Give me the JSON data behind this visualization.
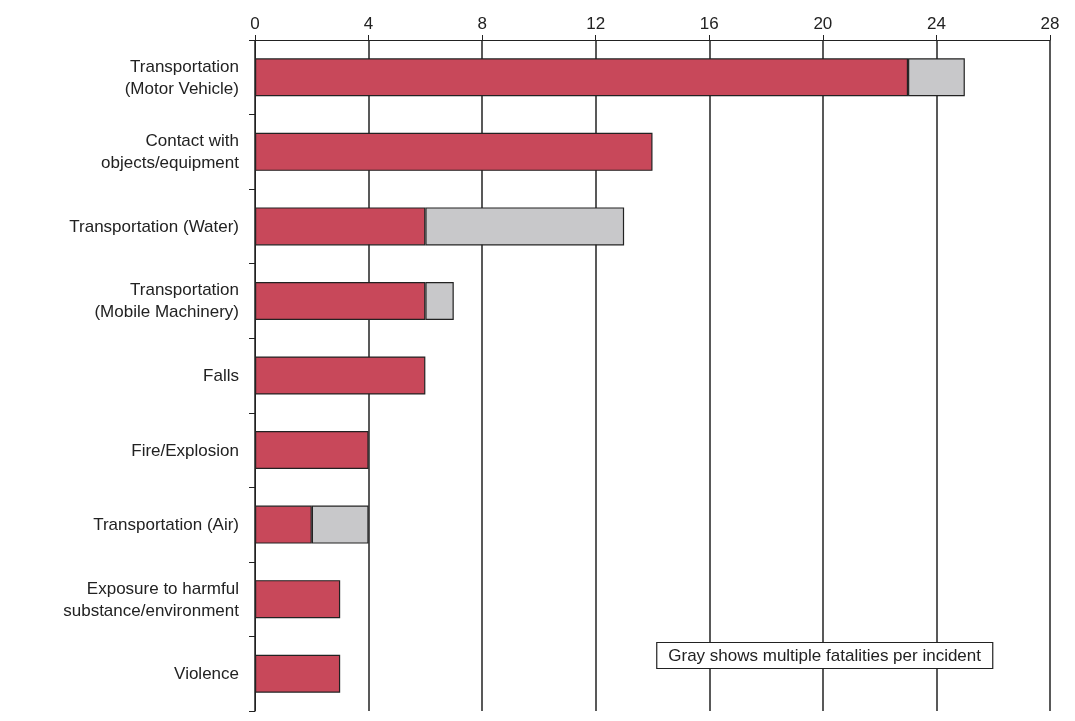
{
  "chart_data": {
    "type": "bar",
    "orientation": "horizontal",
    "stacked": true,
    "categories": [
      "Transportation\n(Motor Vehicle)",
      "Contact with\nobjects/equipment",
      "Transportation (Water)",
      "Transportation\n(Mobile Machinery)",
      "Falls",
      "Fire/Explosion",
      "Transportation (Air)",
      "Exposure to harmful\nsubstance/environment",
      "Violence"
    ],
    "series": [
      {
        "color": "#c8485a",
        "values": [
          23,
          14,
          6,
          6,
          6,
          4,
          2,
          3,
          3
        ]
      },
      {
        "color": "#c8c8ca",
        "values": [
          2,
          0,
          7,
          1,
          0,
          0,
          2,
          0,
          0
        ]
      }
    ],
    "xlim": [
      0,
      28
    ],
    "xticks": [
      0,
      4,
      8,
      12,
      16,
      20,
      24,
      28
    ],
    "grid": "x",
    "annotations": [
      "Gray shows multiple fatalities per incident"
    ]
  }
}
